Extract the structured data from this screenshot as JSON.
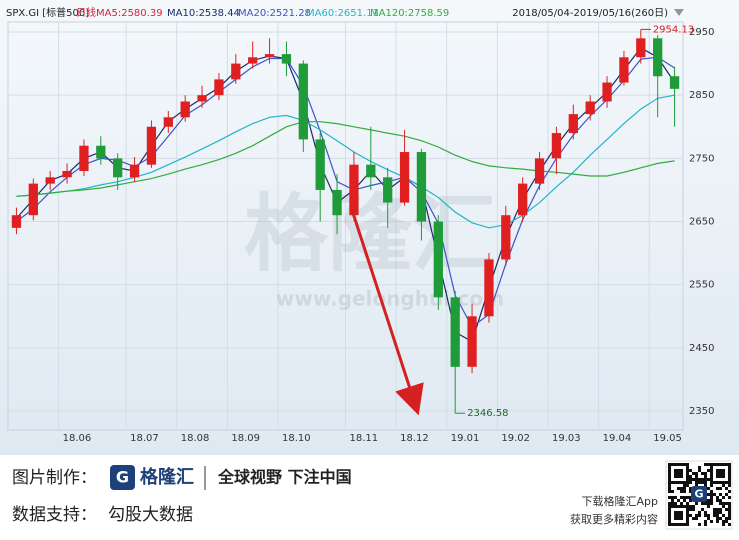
{
  "chart_data": {
    "type": "candlestick",
    "title": "SPX.GI [标普500]",
    "period_label": "日线",
    "subtitle": "2018/05/04-2019/05/16(260日)",
    "up_color": "#e02020",
    "down_color": "#1f9b3a",
    "grid": true,
    "categories": [
      null,
      null,
      null,
      "18.06",
      null,
      null,
      null,
      "18.07",
      null,
      null,
      "18.08",
      null,
      null,
      "18.09",
      null,
      null,
      "18.10",
      null,
      null,
      null,
      "18.11",
      null,
      null,
      "18.12",
      null,
      null,
      "19.01",
      null,
      null,
      "19.02",
      null,
      null,
      "19.03",
      null,
      null,
      "19.04",
      null,
      null,
      "19.05",
      null
    ],
    "open": [
      2640,
      2660,
      2710,
      2720,
      2730,
      2770,
      2750,
      2720,
      2740,
      2800,
      2815,
      2840,
      2850,
      2875,
      2900,
      2910,
      2915,
      2900,
      2780,
      2700,
      2660,
      2740,
      2720,
      2680,
      2760,
      2650,
      2530,
      2420,
      2500,
      2590,
      2660,
      2710,
      2750,
      2790,
      2820,
      2840,
      2870,
      2910,
      2940,
      2880
    ],
    "high": [
      2672,
      2718,
      2730,
      2742,
      2780,
      2785,
      2758,
      2752,
      2810,
      2825,
      2850,
      2865,
      2885,
      2915,
      2935,
      2940,
      2935,
      2905,
      2790,
      2725,
      2760,
      2800,
      2735,
      2795,
      2765,
      2660,
      2540,
      2520,
      2600,
      2675,
      2720,
      2760,
      2800,
      2835,
      2850,
      2880,
      2920,
      2954.13,
      2945,
      2895
    ],
    "low": [
      2630,
      2652,
      2700,
      2710,
      2722,
      2740,
      2700,
      2712,
      2735,
      2790,
      2808,
      2830,
      2842,
      2868,
      2892,
      2900,
      2880,
      2760,
      2650,
      2630,
      2650,
      2700,
      2640,
      2675,
      2620,
      2510,
      2346.58,
      2410,
      2490,
      2580,
      2650,
      2700,
      2725,
      2780,
      2810,
      2830,
      2865,
      2900,
      2815,
      2800
    ],
    "close": [
      2660,
      2710,
      2720,
      2730,
      2770,
      2750,
      2720,
      2740,
      2800,
      2815,
      2840,
      2850,
      2875,
      2900,
      2910,
      2915,
      2900,
      2780,
      2700,
      2660,
      2740,
      2720,
      2680,
      2760,
      2650,
      2530,
      2420,
      2500,
      2590,
      2660,
      2710,
      2750,
      2790,
      2820,
      2840,
      2870,
      2910,
      2940,
      2880,
      2860
    ],
    "series": [
      {
        "name": "MA5:2580.39",
        "color": "#d9213a"
      },
      {
        "name": "MA10:2538.44",
        "color": "#1c2a6b",
        "values": [
          2655,
          2685,
          2715,
          2725,
          2750,
          2760,
          2735,
          2730,
          2770,
          2808,
          2828,
          2845,
          2862,
          2888,
          2905,
          2912,
          2908,
          2840,
          2740,
          2680,
          2700,
          2730,
          2700,
          2720,
          2705,
          2590,
          2475,
          2460,
          2545,
          2625,
          2685,
          2730,
          2770,
          2805,
          2830,
          2855,
          2890,
          2925,
          2910,
          2870
        ]
      },
      {
        "name": "MA20:2521.28",
        "color": "#3a55c6",
        "values": [
          2650,
          2670,
          2697,
          2720,
          2740,
          2750,
          2747,
          2737,
          2753,
          2785,
          2818,
          2835,
          2855,
          2875,
          2895,
          2908,
          2908,
          2865,
          2793,
          2713,
          2700,
          2707,
          2713,
          2720,
          2697,
          2647,
          2533,
          2483,
          2503,
          2583,
          2653,
          2707,
          2750,
          2787,
          2817,
          2843,
          2873,
          2907,
          2910,
          2893
        ]
      },
      {
        "name": "MA60:2651.11",
        "color": "#22b5c8",
        "values": [
          2690,
          2692,
          2695,
          2698,
          2702,
          2708,
          2713,
          2720,
          2728,
          2740,
          2752,
          2765,
          2778,
          2792,
          2805,
          2815,
          2818,
          2810,
          2795,
          2778,
          2760,
          2745,
          2732,
          2720,
          2705,
          2688,
          2665,
          2648,
          2640,
          2645,
          2660,
          2680,
          2705,
          2728,
          2755,
          2780,
          2805,
          2828,
          2845,
          2850
        ]
      },
      {
        "name": "MA120:2758.59",
        "color": "#2fae3b",
        "values": [
          2690,
          2692,
          2695,
          2698,
          2700,
          2703,
          2708,
          2713,
          2718,
          2725,
          2733,
          2740,
          2748,
          2758,
          2770,
          2785,
          2800,
          2808,
          2808,
          2805,
          2800,
          2795,
          2790,
          2785,
          2778,
          2768,
          2755,
          2745,
          2738,
          2735,
          2733,
          2730,
          2728,
          2725,
          2722,
          2722,
          2728,
          2735,
          2742,
          2746
        ]
      }
    ],
    "ylim": [
      2320,
      2988
    ],
    "yticks": [
      2350,
      2450,
      2550,
      2650,
      2750,
      2850,
      2950
    ]
  },
  "watermark": {
    "text": "格隆汇",
    "url": "www.gelonghui.com"
  },
  "footer": {
    "made_label": "图片制作：",
    "logo_letter": "G",
    "brand": "格隆汇",
    "slogan": "全球视野 下注中国",
    "data_label": "数据支持：",
    "data_source": "勾股大数据",
    "app_line1": "下载格隆汇App",
    "app_line2": "获取更多精彩内容"
  }
}
